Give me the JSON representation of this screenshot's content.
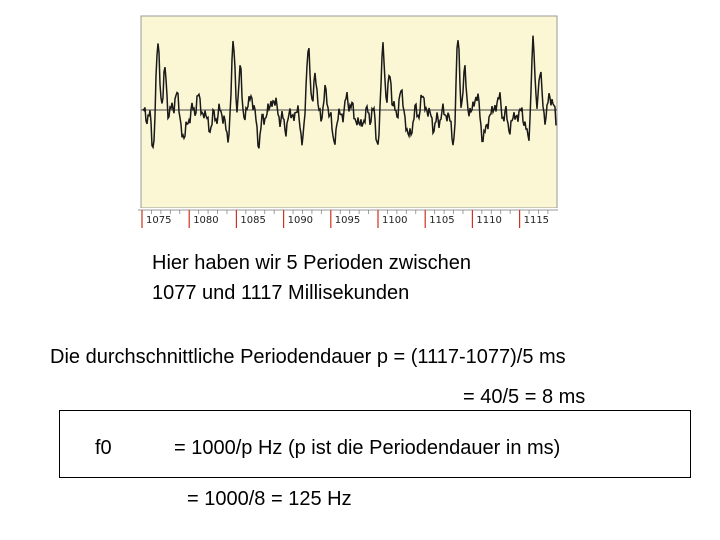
{
  "waveform": {
    "background": "#fbf7d4",
    "trace_color": "#1a1a1a",
    "ruler_color": "#cc3322",
    "ticks": [
      "1075",
      "1080",
      "1085",
      "1090",
      "1095",
      "1100",
      "1105",
      "1110",
      "1115"
    ]
  },
  "caption": {
    "line1": "Hier haben wir 5 Perioden zwischen",
    "line2": "1077 und 1117 Millisekunden"
  },
  "formula": {
    "line1": "Die durchschnittliche Periodendauer p  = (1117-1077)/5 ms",
    "line2": "= 40/5 = 8 ms"
  },
  "f0": {
    "label": "f0",
    "formula": "= 1000/p Hz (p ist die Periodendauer in ms)",
    "result": "= 1000/8 = 125 Hz"
  }
}
